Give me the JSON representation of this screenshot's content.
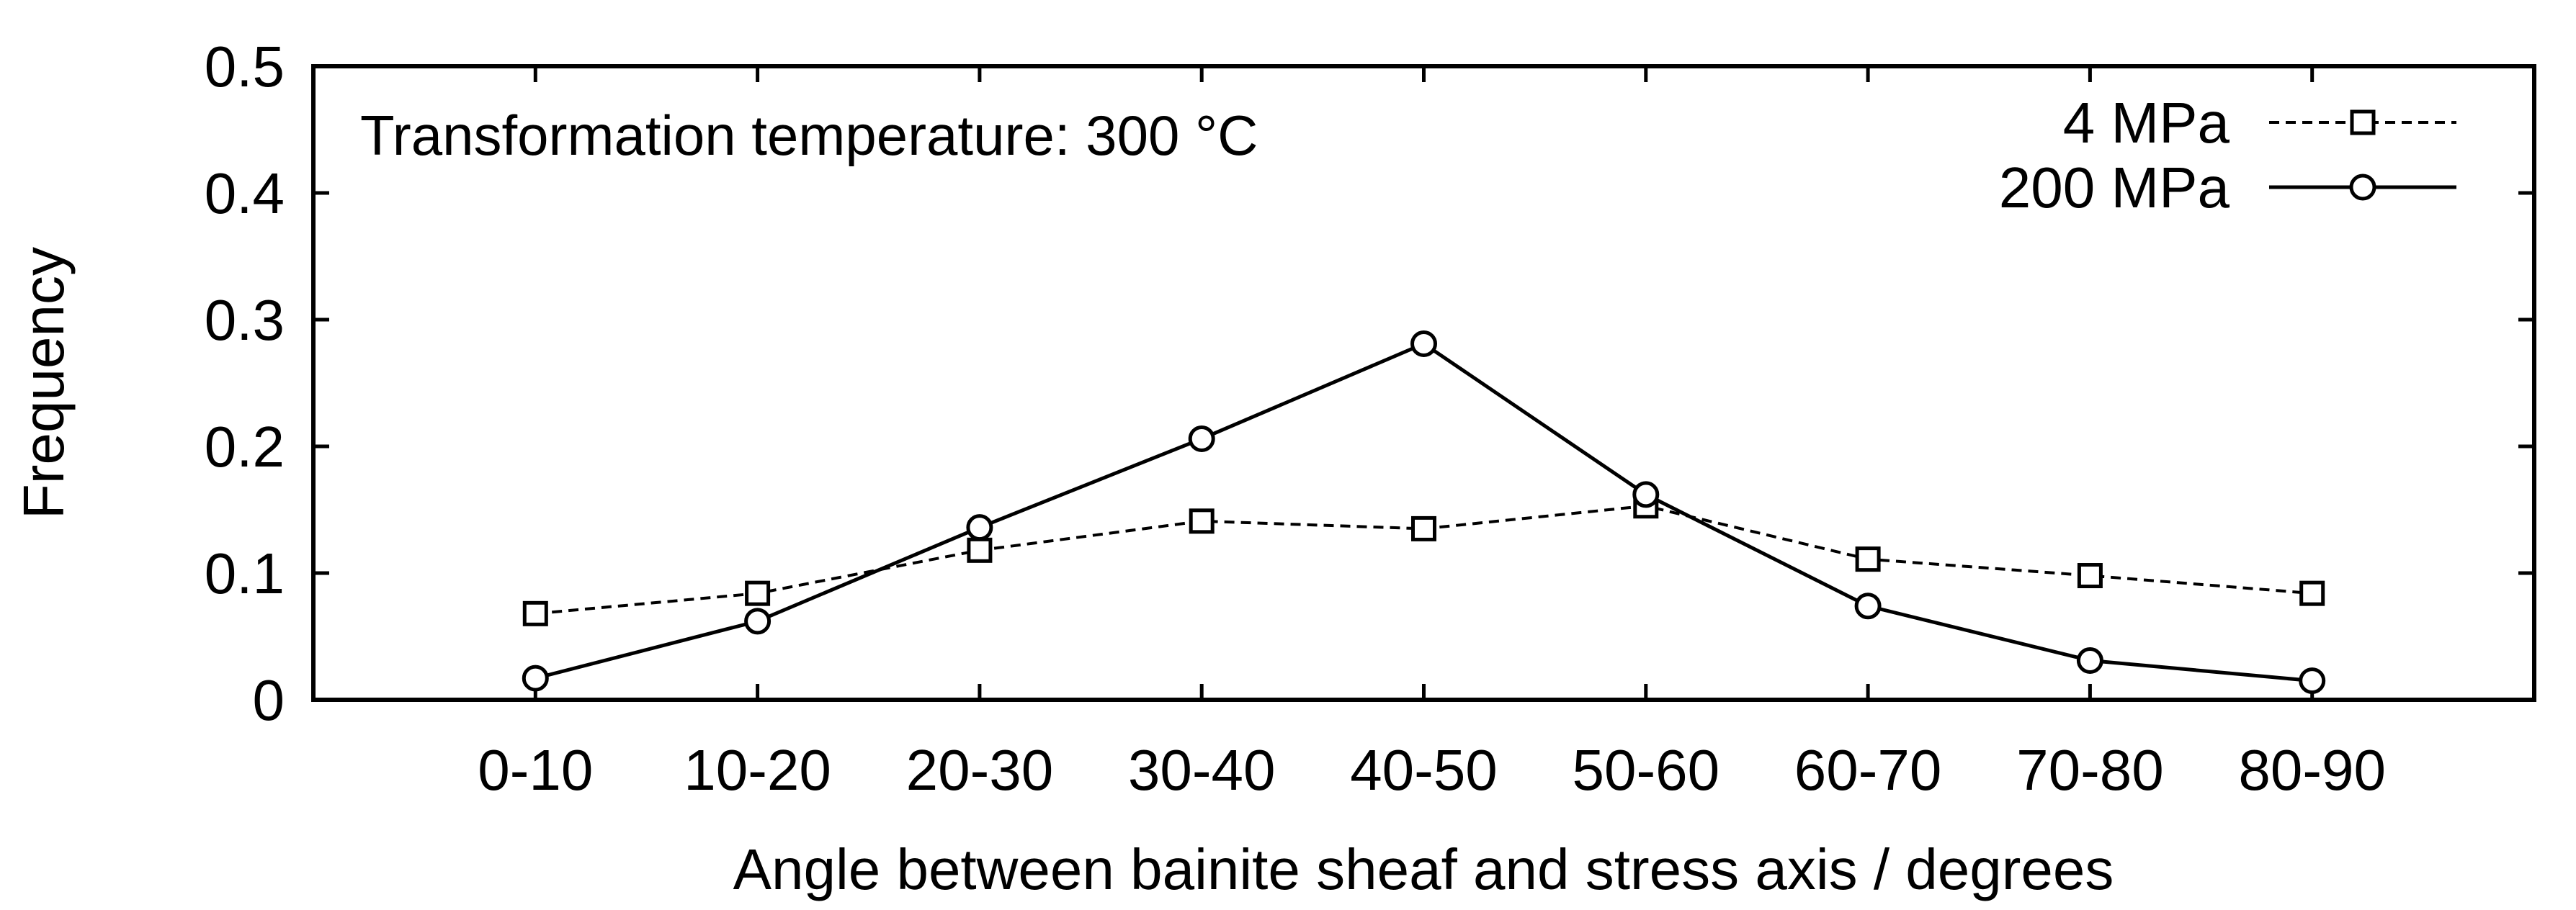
{
  "chart_data": {
    "type": "line",
    "title": "",
    "annotation": "Transformation temperature: 300 °C",
    "annotation_parts": {
      "text": "Transformation temperature: 300 ",
      "superscript": "o",
      "unit": "C"
    },
    "xlabel": "Angle between bainite sheaf and stress axis / degrees",
    "ylabel": "Frequency",
    "categories": [
      "0-10",
      "10-20",
      "20-30",
      "30-40",
      "40-50",
      "50-60",
      "60-70",
      "70-80",
      "80-90"
    ],
    "ylim": [
      0,
      0.5
    ],
    "yticks": [
      "0",
      "0.1",
      "0.2",
      "0.3",
      "0.4",
      "0.5"
    ],
    "grid": false,
    "legend_position": "top-right",
    "series": [
      {
        "name": "4 MPa",
        "style": "dashed",
        "marker": "square",
        "values": [
          0.068,
          0.084,
          0.118,
          0.141,
          0.135,
          0.153,
          0.111,
          0.098,
          0.084
        ]
      },
      {
        "name": "200 MPa",
        "style": "solid",
        "marker": "circle",
        "values": [
          0.017,
          0.062,
          0.136,
          0.206,
          0.281,
          0.162,
          0.074,
          0.031,
          0.015
        ]
      }
    ]
  }
}
